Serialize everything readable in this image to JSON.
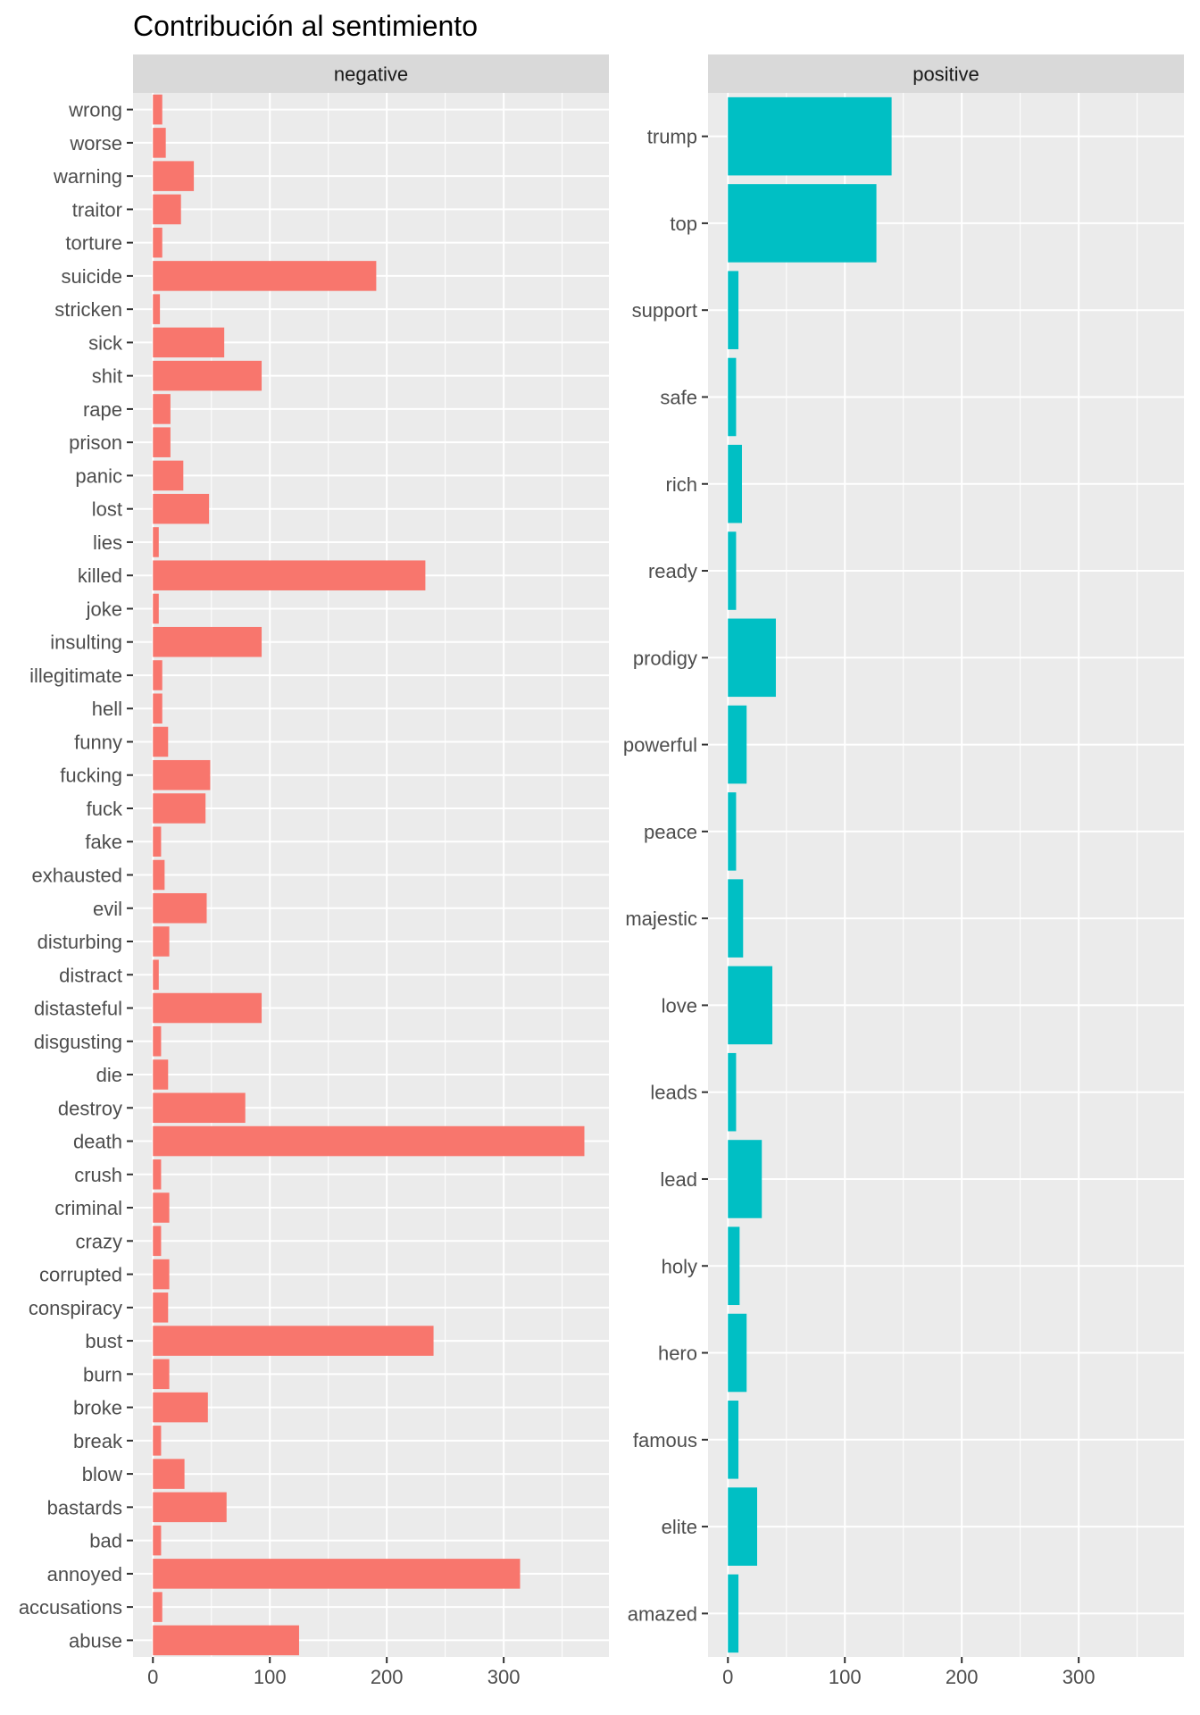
{
  "chart_data": {
    "type": "bar",
    "orientation": "horizontal",
    "title": "Contribución al sentimiento",
    "xlabel": "",
    "ylabel": "",
    "grid": true,
    "legend": "none",
    "xlim": [
      -17,
      390
    ],
    "x_ticks": [
      "0",
      "100",
      "200",
      "300"
    ],
    "panels": [
      {
        "name": "negative",
        "color": "#F8766D",
        "categories": [
          "abuse",
          "accusations",
          "annoyed",
          "bad",
          "bastards",
          "blow",
          "break",
          "broke",
          "burn",
          "bust",
          "conspiracy",
          "corrupted",
          "crazy",
          "criminal",
          "crush",
          "death",
          "destroy",
          "die",
          "disgusting",
          "distasteful",
          "distract",
          "disturbing",
          "evil",
          "exhausted",
          "fake",
          "fuck",
          "fucking",
          "funny",
          "hell",
          "illegitimate",
          "insulting",
          "joke",
          "killed",
          "lies",
          "lost",
          "panic",
          "prison",
          "rape",
          "shit",
          "sick",
          "stricken",
          "suicide",
          "torture",
          "traitor",
          "warning",
          "worse",
          "wrong"
        ],
        "values": [
          125,
          8,
          314,
          7,
          63,
          27,
          7,
          47,
          14,
          240,
          13,
          14,
          7,
          14,
          7,
          369,
          79,
          13,
          7,
          93,
          5,
          14,
          46,
          10,
          7,
          45,
          49,
          13,
          8,
          8,
          93,
          5,
          233,
          5,
          48,
          26,
          15,
          15,
          93,
          61,
          6,
          191,
          8,
          24,
          35,
          11,
          8
        ]
      },
      {
        "name": "positive",
        "color": "#00BFC4",
        "categories": [
          "amazed",
          "elite",
          "famous",
          "hero",
          "holy",
          "lead",
          "leads",
          "love",
          "majestic",
          "peace",
          "powerful",
          "prodigy",
          "ready",
          "rich",
          "safe",
          "support",
          "top",
          "trump"
        ],
        "values": [
          9,
          25,
          9,
          16,
          10,
          29,
          7,
          38,
          13,
          7,
          16,
          41,
          7,
          12,
          7,
          9,
          127,
          140
        ]
      }
    ]
  }
}
